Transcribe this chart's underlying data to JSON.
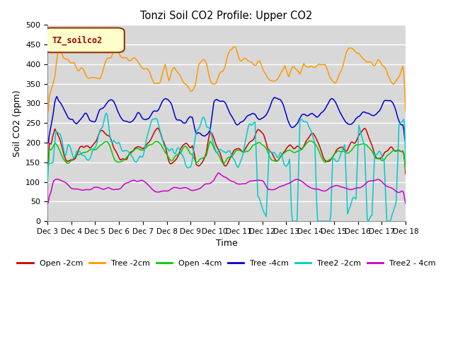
{
  "title": "Tonzi Soil CO2 Profile: Upper CO2",
  "xlabel": "Time",
  "ylabel": "Soil CO2 (ppm)",
  "ylim": [
    0,
    500
  ],
  "xlim": [
    0,
    360
  ],
  "background_color": "#d8d8d8",
  "legend_label": "TZ_soilco2",
  "series_colors": {
    "Open -2cm": "#cc0000",
    "Tree -2cm": "#ff9900",
    "Open -4cm": "#00cc00",
    "Tree -4cm": "#0000cc",
    "Tree2 -2cm": "#00cccc",
    "Tree2 - 4cm": "#cc00cc"
  },
  "xtick_labels": [
    "Dec 3",
    "Dec 4",
    "Dec 5",
    "Dec 6",
    "Dec 7",
    "Dec 8",
    "Dec 9",
    "Dec 10",
    "Dec 11",
    "Dec 12",
    "Dec 13",
    "Dec 14",
    "Dec 15",
    "Dec 16",
    "Dec 17",
    "Dec 18"
  ],
  "xtick_positions": [
    0,
    24,
    48,
    72,
    96,
    120,
    144,
    168,
    192,
    216,
    240,
    264,
    288,
    312,
    336,
    360
  ],
  "ytick_labels": [
    "0",
    "50",
    "100",
    "150",
    "200",
    "250",
    "300",
    "350",
    "400",
    "450",
    "500"
  ],
  "ytick_positions": [
    0,
    50,
    100,
    150,
    200,
    250,
    300,
    350,
    400,
    450,
    500
  ]
}
